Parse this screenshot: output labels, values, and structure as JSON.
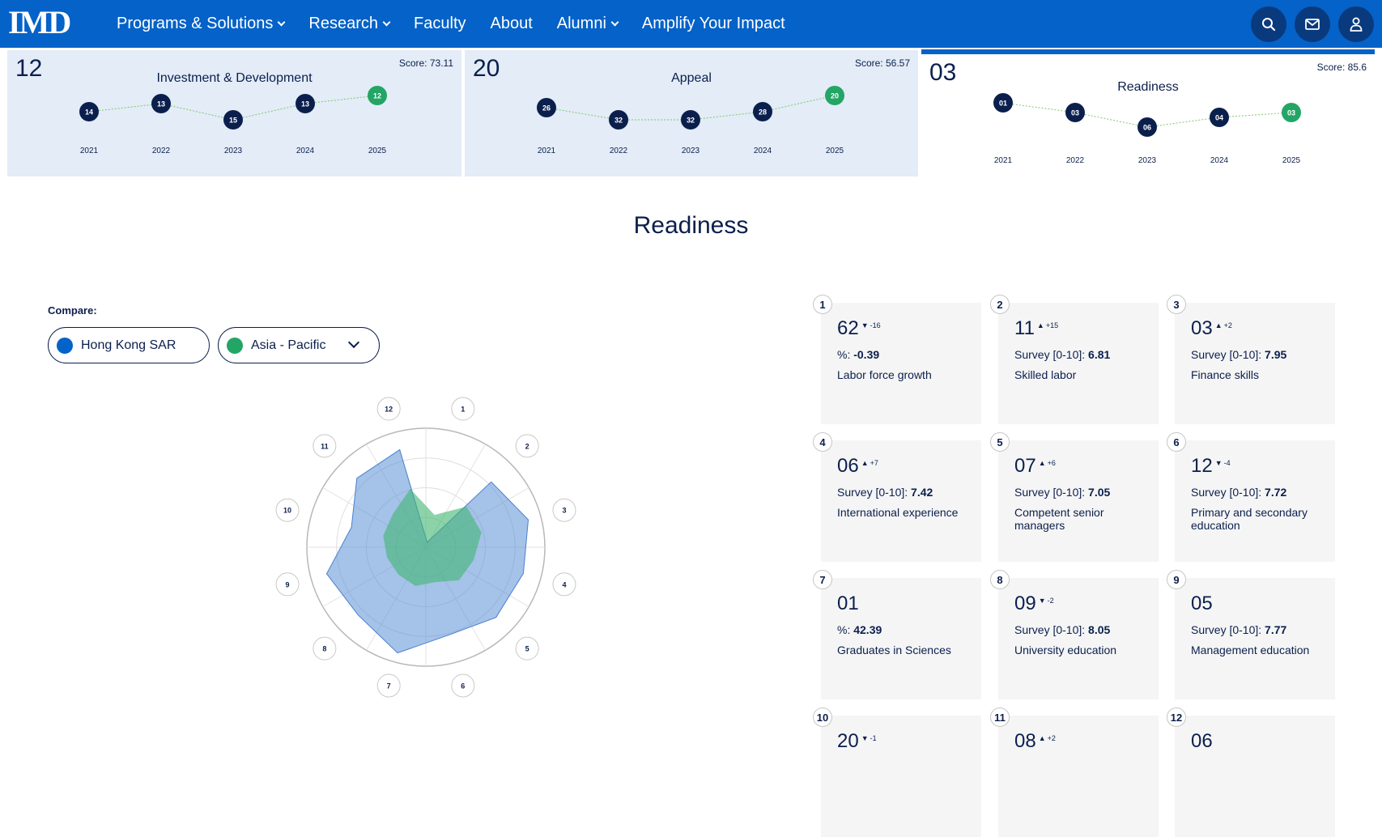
{
  "nav": {
    "logo": "IMD",
    "items": [
      {
        "label": "Programs & Solutions",
        "dropdown": true
      },
      {
        "label": "Research",
        "dropdown": true
      },
      {
        "label": "Faculty",
        "dropdown": false
      },
      {
        "label": "About",
        "dropdown": false
      },
      {
        "label": "Alumni",
        "dropdown": true
      },
      {
        "label": "Amplify Your Impact",
        "dropdown": false
      }
    ],
    "icons": [
      "search-icon",
      "mail-icon",
      "user-icon"
    ],
    "color": "#0462c8"
  },
  "factor_cards": [
    {
      "rank": "12",
      "title": "Investment & Development",
      "score_label": "Score:",
      "score": "73.11",
      "active": false,
      "years": [
        "2021",
        "2022",
        "2023",
        "2024",
        "2025"
      ],
      "ranks": [
        "14",
        "13",
        "15",
        "13",
        "12"
      ],
      "ranks_num": [
        14,
        13,
        15,
        13,
        12
      ]
    },
    {
      "rank": "20",
      "title": "Appeal",
      "score_label": "Score:",
      "score": "56.57",
      "active": false,
      "years": [
        "2021",
        "2022",
        "2023",
        "2024",
        "2025"
      ],
      "ranks": [
        "26",
        "32",
        "32",
        "28",
        "20"
      ],
      "ranks_num": [
        26,
        32,
        32,
        28,
        20
      ]
    },
    {
      "rank": "03",
      "title": "Readiness",
      "score_label": "Score:",
      "score": "85.6",
      "active": true,
      "years": [
        "2021",
        "2022",
        "2023",
        "2024",
        "2025"
      ],
      "ranks": [
        "01",
        "03",
        "06",
        "04",
        "03"
      ],
      "ranks_num": [
        1,
        3,
        6,
        4,
        3
      ]
    }
  ],
  "section_title": "Readiness",
  "compare": {
    "label": "Compare:",
    "primary": {
      "label": "Hong Kong SAR",
      "color": "#0462c8"
    },
    "secondary": {
      "label": "Asia - Pacific",
      "color": "#23a566"
    }
  },
  "radar": {
    "axes": [
      "1",
      "2",
      "3",
      "4",
      "5",
      "6",
      "7",
      "8",
      "9",
      "10",
      "11",
      "12"
    ],
    "series": [
      {
        "name": "Hong Kong SAR",
        "color": "#5b8fd6",
        "values": [
          62,
          11,
          3,
          6,
          7,
          12,
          1,
          9,
          5,
          20,
          8,
          6
        ]
      },
      {
        "name": "Asia - Pacific",
        "color": "#3fb56f",
        "values": [
          40,
          22,
          22,
          28,
          30,
          38,
          35,
          36,
          35,
          32,
          30,
          20
        ]
      }
    ]
  },
  "criteria": [
    {
      "num": "1",
      "rank": "62",
      "dir": "down",
      "change": "-16",
      "unit": "%:",
      "value": "-0.39",
      "name": "Labor force growth"
    },
    {
      "num": "2",
      "rank": "11",
      "dir": "up",
      "change": "+15",
      "unit": "Survey [0-10]:",
      "value": "6.81",
      "name": "Skilled labor"
    },
    {
      "num": "3",
      "rank": "03",
      "dir": "up",
      "change": "+2",
      "unit": "Survey [0-10]:",
      "value": "7.95",
      "name": "Finance skills"
    },
    {
      "num": "4",
      "rank": "06",
      "dir": "up",
      "change": "+7",
      "unit": "Survey [0-10]:",
      "value": "7.42",
      "name": "International experience"
    },
    {
      "num": "5",
      "rank": "07",
      "dir": "up",
      "change": "+6",
      "unit": "Survey [0-10]:",
      "value": "7.05",
      "name": "Competent senior managers"
    },
    {
      "num": "6",
      "rank": "12",
      "dir": "down",
      "change": "-4",
      "unit": "Survey [0-10]:",
      "value": "7.72",
      "name": "Primary and secondary education"
    },
    {
      "num": "7",
      "rank": "01",
      "dir": "",
      "change": "",
      "unit": "%:",
      "value": "42.39",
      "name": "Graduates in Sciences"
    },
    {
      "num": "8",
      "rank": "09",
      "dir": "down",
      "change": "-2",
      "unit": "Survey [0-10]:",
      "value": "8.05",
      "name": "University education"
    },
    {
      "num": "9",
      "rank": "05",
      "dir": "",
      "change": "",
      "unit": "Survey [0-10]:",
      "value": "7.77",
      "name": "Management education"
    },
    {
      "num": "10",
      "rank": "20",
      "dir": "down",
      "change": "-1",
      "unit": "",
      "value": "",
      "name": ""
    },
    {
      "num": "11",
      "rank": "08",
      "dir": "up",
      "change": "+2",
      "unit": "",
      "value": "",
      "name": ""
    },
    {
      "num": "12",
      "rank": "06",
      "dir": "",
      "change": "",
      "unit": "",
      "value": "",
      "name": ""
    }
  ]
}
